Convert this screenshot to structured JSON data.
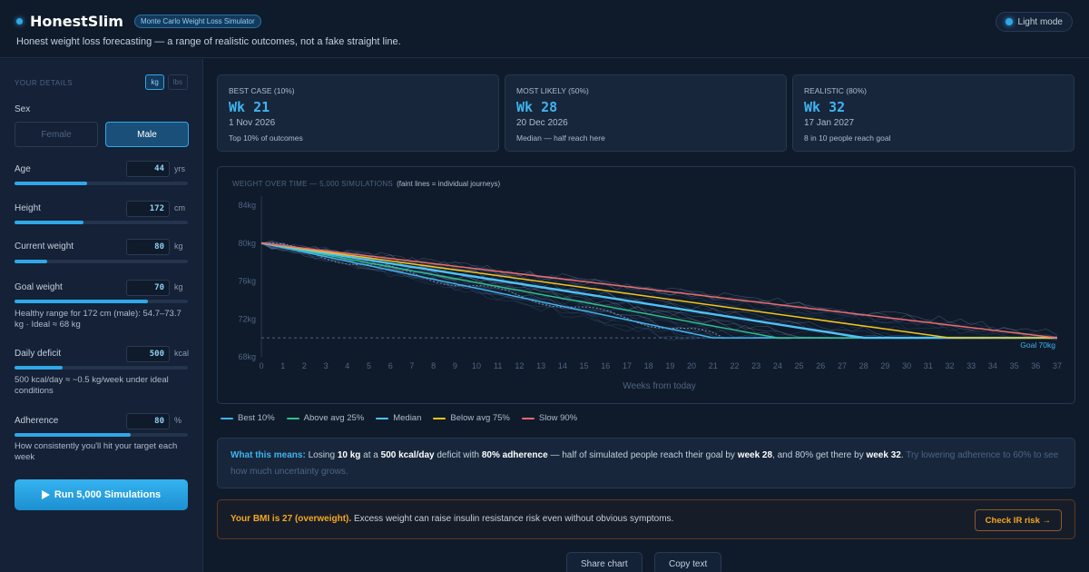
{
  "header": {
    "brand": "HonestSlim",
    "badge": "Monte Carlo Weight Loss Simulator",
    "tagline": "Honest weight loss forecasting — a range of realistic outcomes, not a fake straight line.",
    "mode_button": "Light mode"
  },
  "sidebar": {
    "section_label": "YOUR DETAILS",
    "units": {
      "kg": "kg",
      "lbs": "lbs",
      "selected": "kg"
    },
    "sex": {
      "label": "Sex",
      "female": "Female",
      "male": "Male",
      "selected": "Male"
    },
    "age": {
      "label": "Age",
      "value": "44",
      "unit": "yrs",
      "level": 0.42
    },
    "height": {
      "label": "Height",
      "value": "172",
      "unit": "cm",
      "level": 0.4
    },
    "current_weight": {
      "label": "Current weight",
      "value": "80",
      "unit": "kg",
      "level": 0.19
    },
    "goal_weight": {
      "label": "Goal weight",
      "value": "70",
      "unit": "kg",
      "level": 0.77,
      "hint": "Healthy range for 172 cm (male): 54.7–73.7 kg · Ideal ≈ 68 kg"
    },
    "daily_deficit": {
      "label": "Daily deficit",
      "value": "500",
      "unit": "kcal",
      "level": 0.28,
      "hint": "500 kcal/day ≈ ~0.5 kg/week under ideal conditions"
    },
    "adherence": {
      "label": "Adherence",
      "value": "80",
      "unit": "%",
      "level": 0.67,
      "hint": "How consistently you'll hit your target each week"
    },
    "run_button": "Run 5,000 Simulations",
    "run_icon": "play-icon"
  },
  "cards": [
    {
      "label": "BEST CASE (10%)",
      "week": "Wk 21",
      "date": "1 Nov 2026",
      "sub": "Top 10% of outcomes"
    },
    {
      "label": "MOST LIKELY (50%)",
      "week": "Wk 28",
      "date": "20 Dec 2026",
      "sub": "Median — half reach here"
    },
    {
      "label": "REALISTIC (80%)",
      "week": "Wk 32",
      "date": "17 Jan 2027",
      "sub": "8 in 10 people reach goal"
    }
  ],
  "chart": {
    "title": "WEIGHT OVER TIME — 5,000 SIMULATIONS",
    "note": "(faint lines = individual journeys)",
    "xlabel": "Weeks from today",
    "goal_label": "Goal 70kg"
  },
  "chart_data": {
    "type": "line",
    "x": [
      0,
      1,
      2,
      3,
      4,
      5,
      6,
      7,
      8,
      9,
      10,
      11,
      12,
      13,
      14,
      15,
      16,
      17,
      18,
      19,
      20,
      21,
      22,
      23,
      24,
      25,
      26,
      27,
      28,
      29,
      30,
      31,
      32,
      33,
      34,
      35,
      36,
      37
    ],
    "y_ticks": [
      "84kg",
      "80kg",
      "76kg",
      "72kg",
      "68kg"
    ],
    "ylim": [
      68,
      84
    ],
    "xlim": [
      0,
      37
    ],
    "goal": 70,
    "series": [
      {
        "name": "Best 10%",
        "color": "#3fb4f0",
        "points": [
          [
            0,
            80
          ],
          [
            21,
            70
          ],
          [
            37,
            70
          ]
        ]
      },
      {
        "name": "Above avg 25%",
        "color": "#2fbf8f",
        "points": [
          [
            0,
            80
          ],
          [
            24,
            70
          ],
          [
            37,
            70
          ]
        ]
      },
      {
        "name": "Median",
        "color": "#4fc3f7",
        "points": [
          [
            0,
            80
          ],
          [
            28,
            70
          ],
          [
            37,
            70
          ]
        ]
      },
      {
        "name": "Below avg 75%",
        "color": "#f5c518",
        "points": [
          [
            0,
            80
          ],
          [
            32,
            70
          ],
          [
            37,
            70
          ]
        ]
      },
      {
        "name": "Slow 90%",
        "color": "#f06a6a",
        "points": [
          [
            0,
            80
          ],
          [
            37,
            70
          ]
        ]
      }
    ],
    "grid": false,
    "legend_position": "bottom-left"
  },
  "info": {
    "lead": "What this means:",
    "t1": " Losing ",
    "b1": "10 kg",
    "t2": " at a ",
    "b2": "500 kcal/day",
    "t3": " deficit with ",
    "b3": "80% adherence",
    "t4": " — half of simulated people reach their goal by ",
    "b4": "week 28",
    "t5": ", and 80% get there by ",
    "b5": "week 32",
    "t6": ". ",
    "muted": "Try lowering adherence to 60% to see how much uncertainty grows."
  },
  "bmi": {
    "warn": "Your BMI is 27 (overweight).",
    "text": " Excess weight can raise insulin resistance risk even without obvious symptoms.",
    "button": "Check IR risk →"
  },
  "actions": {
    "share": "Share chart",
    "copy": "Copy text"
  }
}
